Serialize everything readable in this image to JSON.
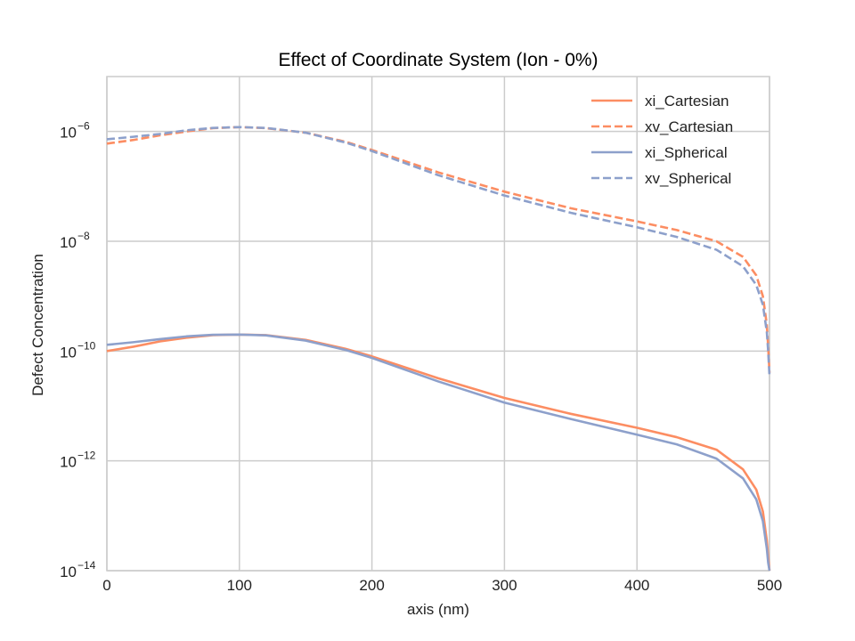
{
  "chart_data": {
    "type": "line",
    "title": "Effect of Coordinate System (Ion - 0%)",
    "xlabel": "axis (nm)",
    "ylabel": "Defect Concentration",
    "xlim": [
      0,
      500
    ],
    "ylim": [
      1e-14,
      1e-05
    ],
    "yscale": "log",
    "grid": true,
    "legend_position": "top-right",
    "x_ticks": [
      0,
      100,
      200,
      300,
      400,
      500
    ],
    "y_ticks": [
      {
        "value": 1e-14,
        "base": "10",
        "exp": "−14"
      },
      {
        "value": 1e-12,
        "base": "10",
        "exp": "−12"
      },
      {
        "value": 1e-10,
        "base": "10",
        "exp": "−10"
      },
      {
        "value": 1e-08,
        "base": "10",
        "exp": "−8"
      },
      {
        "value": 1e-06,
        "base": "10",
        "exp": "−6"
      }
    ],
    "series": [
      {
        "name": "xi_Cartesian",
        "color": "#fc8d62",
        "dash": "solid",
        "x": [
          0,
          20,
          40,
          60,
          80,
          100,
          120,
          150,
          180,
          200,
          250,
          300,
          350,
          400,
          430,
          460,
          480,
          490,
          495,
          498,
          499,
          500
        ],
        "y": [
          1e-10,
          1.2e-10,
          1.5e-10,
          1.75e-10,
          1.95e-10,
          2e-10,
          1.95e-10,
          1.6e-10,
          1.1e-10,
          8e-11,
          3.2e-11,
          1.4e-11,
          7.2e-12,
          4e-12,
          2.7e-12,
          1.6e-12,
          7e-13,
          3e-13,
          1.2e-13,
          3.5e-14,
          1.8e-14,
          1e-14
        ]
      },
      {
        "name": "xv_Cartesian",
        "color": "#fc8d62",
        "dash": "dashed",
        "x": [
          0,
          20,
          40,
          60,
          80,
          100,
          120,
          150,
          180,
          200,
          250,
          300,
          350,
          400,
          430,
          460,
          480,
          490,
          495,
          498,
          499,
          500
        ],
        "y": [
          6e-07,
          7e-07,
          8.5e-07,
          1e-06,
          1.15e-06,
          1.2e-06,
          1.15e-06,
          9.5e-07,
          6.5e-07,
          4.6e-07,
          1.8e-07,
          8e-08,
          4e-08,
          2.3e-08,
          1.6e-08,
          1e-08,
          5.2e-09,
          2.4e-09,
          1e-09,
          3e-10,
          1.2e-10,
          4e-11
        ]
      },
      {
        "name": "xi_Spherical",
        "color": "#8da0cb",
        "dash": "solid",
        "x": [
          0,
          20,
          40,
          60,
          80,
          100,
          120,
          150,
          180,
          200,
          250,
          300,
          350,
          400,
          430,
          460,
          480,
          490,
          495,
          498,
          499,
          500
        ],
        "y": [
          1.3e-10,
          1.45e-10,
          1.65e-10,
          1.85e-10,
          1.98e-10,
          2e-10,
          1.93e-10,
          1.55e-10,
          1.05e-10,
          7.5e-11,
          2.8e-11,
          1.15e-11,
          5.8e-12,
          3e-12,
          2e-12,
          1.1e-12,
          4.8e-13,
          2e-13,
          8e-14,
          2.5e-14,
          1.4e-14,
          1e-14
        ]
      },
      {
        "name": "xv_Spherical",
        "color": "#8da0cb",
        "dash": "dashed",
        "x": [
          0,
          20,
          40,
          60,
          80,
          100,
          120,
          150,
          180,
          200,
          250,
          300,
          350,
          400,
          430,
          460,
          480,
          490,
          495,
          498,
          499,
          500
        ],
        "y": [
          7.2e-07,
          8e-07,
          9e-07,
          1.05e-06,
          1.16e-06,
          1.2e-06,
          1.16e-06,
          9.5e-07,
          6.3e-07,
          4.4e-07,
          1.6e-07,
          6.8e-08,
          3.3e-08,
          1.8e-08,
          1.2e-08,
          7e-09,
          3.5e-09,
          1.6e-09,
          7e-10,
          2.2e-10,
          1e-10,
          3.5e-11
        ]
      }
    ]
  }
}
